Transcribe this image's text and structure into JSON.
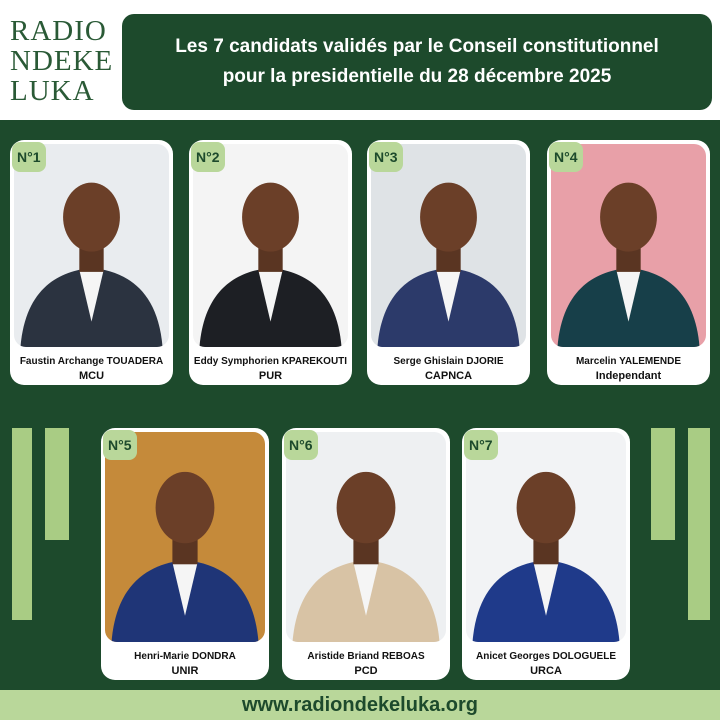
{
  "header": {
    "logo": [
      "RADIO",
      "NDEKE",
      "LUKA"
    ],
    "title": [
      "Les 7 candidats validés par le Conseil constitutionnel",
      "pour la presidentielle du 28 décembre 2025"
    ]
  },
  "candidates": [
    {
      "number": "N°1",
      "name": "Faustin Archange TOUADERA",
      "party": "MCU"
    },
    {
      "number": "N°2",
      "name": "Eddy Symphorien KPAREKOUTI",
      "party": "PUR"
    },
    {
      "number": "N°3",
      "name": "Serge Ghislain DJORIE",
      "party": "CAPNCA"
    },
    {
      "number": "N°4",
      "name": "Marcelin YALEMENDE",
      "party": "Independant"
    },
    {
      "number": "N°5",
      "name": "Henri-Marie DONDRA",
      "party": "UNIR"
    },
    {
      "number": "N°6",
      "name": "Aristide Briand REBOAS",
      "party": "PCD"
    },
    {
      "number": "N°7",
      "name": "Anicet Georges DOLOGUELE",
      "party": "URCA"
    }
  ],
  "footer": {
    "url": "www.radiondekeluka.org"
  }
}
